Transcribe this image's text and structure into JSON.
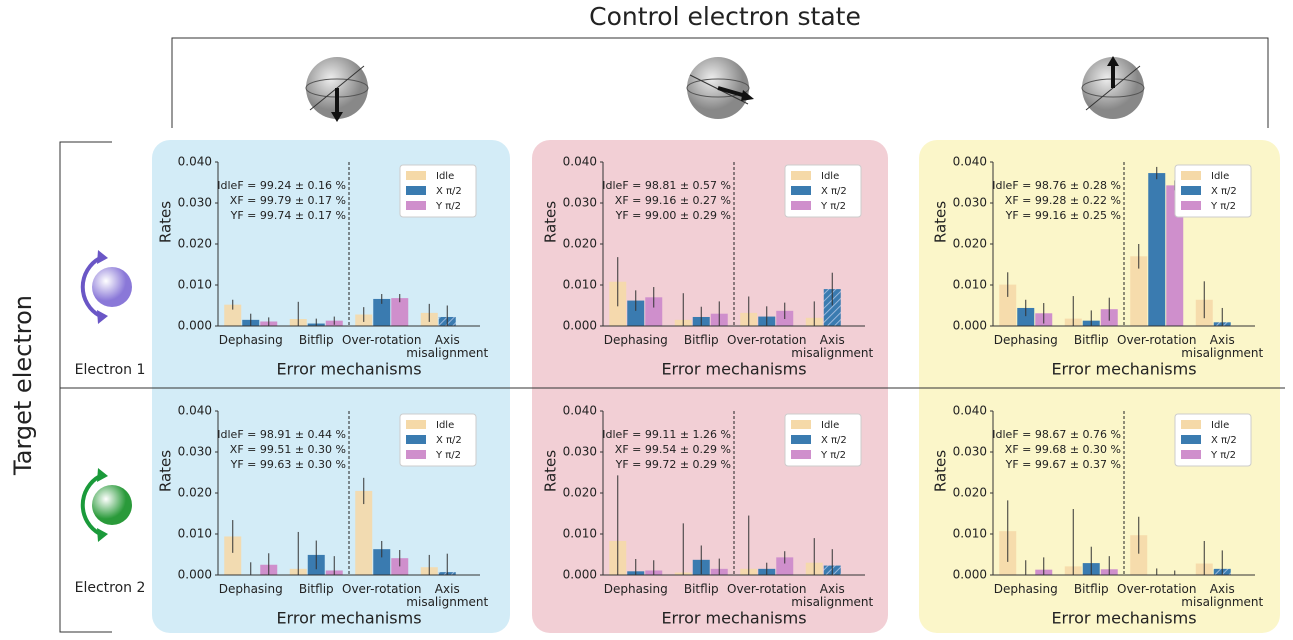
{
  "figure": {
    "title": "Control electron state",
    "row_title": "Target electron",
    "rows": [
      "Electron 1",
      "Electron 2"
    ]
  },
  "chart_data": [
    {
      "type": "bar",
      "xlabel": "Error mechanisms",
      "ylabel": "Rates",
      "categories": [
        "Dephasing",
        "Bitflip",
        "Over-rotation",
        "Axis\nmisalignment"
      ],
      "annotations": [
        "IdleF = 99.24 ± 0.16 %",
        "XF = 99.79 ± 0.17 %",
        "YF = 99.74 ± 0.17 %"
      ],
      "series": [
        {
          "name": "Idle",
          "color": "#f5d9a8",
          "values": [
            0.0052,
            0.0017,
            0.0028,
            0.0032
          ],
          "errors": [
            0.0012,
            0.0042,
            0.0018,
            0.0022
          ]
        },
        {
          "name": "X π/2",
          "color": "#3a7bb0",
          "values": [
            0.0015,
            0.0006,
            0.0066,
            0.0022
          ],
          "errors": [
            0.0015,
            0.0012,
            0.0012,
            0.0028
          ]
        },
        {
          "name": "Y π/2",
          "color": "#cf8fcc",
          "values": [
            0.0011,
            0.0013,
            0.0068,
            null
          ],
          "errors": [
            0.001,
            0.001,
            0.001,
            null
          ]
        }
      ],
      "ylim": [
        0,
        0.04
      ],
      "yticks": [
        {
          "value": 0,
          "label": "0.000"
        },
        {
          "value": 0.01,
          "label": "0.010"
        },
        {
          "value": 0.02,
          "label": "0.020"
        },
        {
          "value": 0.03,
          "label": "0.030"
        },
        {
          "value": 0.04,
          "label": "0.040"
        }
      ]
    },
    {
      "type": "bar",
      "xlabel": "Error mechanisms",
      "ylabel": "Rates",
      "categories": [
        "Dephasing",
        "Bitflip",
        "Over-rotation",
        "Axis\nmisalignment"
      ],
      "annotations": [
        "IdleF = 98.81 ± 0.57 %",
        "XF = 99.16 ± 0.27 %",
        "YF = 99.00 ± 0.29 %"
      ],
      "series": [
        {
          "name": "Idle",
          "color": "#f5d9a8",
          "values": [
            0.0108,
            0.0015,
            0.0032,
            0.002
          ],
          "errors": [
            0.006,
            0.0065,
            0.004,
            0.004
          ]
        },
        {
          "name": "X π/2",
          "color": "#3a7bb0",
          "values": [
            0.0062,
            0.0022,
            0.0023,
            0.009
          ],
          "errors": [
            0.0025,
            0.0025,
            0.0025,
            0.004
          ]
        },
        {
          "name": "Y π/2",
          "color": "#cf8fcc",
          "values": [
            0.007,
            0.003,
            0.0037,
            null
          ],
          "errors": [
            0.0025,
            0.003,
            0.002,
            null
          ]
        }
      ],
      "ylim": [
        0,
        0.04
      ],
      "yticks": [
        {
          "value": 0,
          "label": "0.000"
        },
        {
          "value": 0.01,
          "label": "0.010"
        },
        {
          "value": 0.02,
          "label": "0.020"
        },
        {
          "value": 0.03,
          "label": "0.030"
        },
        {
          "value": 0.04,
          "label": "0.040"
        }
      ]
    },
    {
      "type": "bar",
      "xlabel": "Error mechanisms",
      "ylabel": "Rates",
      "categories": [
        "Dephasing",
        "Bitflip",
        "Over-rotation",
        "Axis\nmisalignment"
      ],
      "annotations": [
        "IdleF = 98.76 ± 0.28 %",
        "XF = 99.28 ± 0.22 %",
        "YF = 99.16 ± 0.25 %"
      ],
      "series": [
        {
          "name": "Idle",
          "color": "#f5d9a8",
          "values": [
            0.0101,
            0.0018,
            0.017,
            0.0064
          ],
          "errors": [
            0.003,
            0.0055,
            0.003,
            0.0045
          ]
        },
        {
          "name": "X π/2",
          "color": "#3a7bb0",
          "values": [
            0.0044,
            0.0013,
            0.0373,
            0.0009
          ],
          "errors": [
            0.002,
            0.0025,
            0.0015,
            0.0035
          ]
        },
        {
          "name": "Y π/2",
          "color": "#cf8fcc",
          "values": [
            0.0031,
            0.0041,
            0.0343,
            null
          ],
          "errors": [
            0.0025,
            0.0028,
            0.0012,
            null
          ]
        }
      ],
      "ylim": [
        0,
        0.04
      ],
      "yticks": [
        {
          "value": 0,
          "label": "0.000"
        },
        {
          "value": 0.01,
          "label": "0.010"
        },
        {
          "value": 0.02,
          "label": "0.020"
        },
        {
          "value": 0.03,
          "label": "0.030"
        },
        {
          "value": 0.04,
          "label": "0.040"
        }
      ]
    },
    {
      "type": "bar",
      "xlabel": "Error mechanisms",
      "ylabel": "Rates",
      "categories": [
        "Dephasing",
        "Bitflip",
        "Over-rotation",
        "Axis\nmisalignment"
      ],
      "annotations": [
        "IdleF = 98.91 ± 0.44 %",
        "XF = 99.51 ± 0.30 %",
        "YF = 99.63 ± 0.30 %"
      ],
      "series": [
        {
          "name": "Idle",
          "color": "#f5d9a8",
          "values": [
            0.0094,
            0.0015,
            0.0205,
            0.0019
          ],
          "errors": [
            0.004,
            0.009,
            0.0032,
            0.003
          ]
        },
        {
          "name": "X π/2",
          "color": "#3a7bb0",
          "values": [
            0.0001,
            0.0049,
            0.0063,
            0.0007
          ],
          "errors": [
            0.003,
            0.0035,
            0.002,
            0.0045
          ]
        },
        {
          "name": "Y π/2",
          "color": "#cf8fcc",
          "values": [
            0.0025,
            0.0011,
            0.0041,
            null
          ],
          "errors": [
            0.0028,
            0.0035,
            0.002,
            null
          ]
        }
      ],
      "ylim": [
        0,
        0.04
      ],
      "yticks": [
        {
          "value": 0,
          "label": "0.000"
        },
        {
          "value": 0.01,
          "label": "0.010"
        },
        {
          "value": 0.02,
          "label": "0.020"
        },
        {
          "value": 0.03,
          "label": "0.030"
        },
        {
          "value": 0.04,
          "label": "0.040"
        }
      ]
    },
    {
      "type": "bar",
      "xlabel": "Error mechanisms",
      "ylabel": "Rates",
      "categories": [
        "Dephasing",
        "Bitflip",
        "Over-rotation",
        "Axis\nmisalignment"
      ],
      "annotations": [
        "IdleF = 99.11 ± 1.26 %",
        "XF = 99.54 ± 0.29 %",
        "YF = 99.72 ± 0.29 %"
      ],
      "series": [
        {
          "name": "Idle",
          "color": "#f5d9a8",
          "values": [
            0.0083,
            0.0006,
            0.0015,
            0.003
          ],
          "errors": [
            0.016,
            0.012,
            0.013,
            0.006
          ]
        },
        {
          "name": "X π/2",
          "color": "#3a7bb0",
          "values": [
            0.0009,
            0.0037,
            0.0015,
            0.0023
          ],
          "errors": [
            0.003,
            0.0035,
            0.0015,
            0.004
          ]
        },
        {
          "name": "Y π/2",
          "color": "#cf8fcc",
          "values": [
            0.0011,
            0.0015,
            0.0043,
            null
          ],
          "errors": [
            0.0025,
            0.0025,
            0.0015,
            null
          ]
        }
      ],
      "ylim": [
        0,
        0.04
      ],
      "yticks": [
        {
          "value": 0,
          "label": "0.000"
        },
        {
          "value": 0.01,
          "label": "0.010"
        },
        {
          "value": 0.02,
          "label": "0.020"
        },
        {
          "value": 0.03,
          "label": "0.030"
        },
        {
          "value": 0.04,
          "label": "0.040"
        }
      ]
    },
    {
      "type": "bar",
      "xlabel": "Error mechanisms",
      "ylabel": "Rates",
      "categories": [
        "Dephasing",
        "Bitflip",
        "Over-rotation",
        "Axis\nmisalignment"
      ],
      "annotations": [
        "IdleF = 98.67 ± 0.76 %",
        "XF = 99.68 ± 0.30 %",
        "YF = 99.67 ± 0.37 %"
      ],
      "series": [
        {
          "name": "Idle",
          "color": "#f5d9a8",
          "values": [
            0.0107,
            0.0021,
            0.0097,
            0.0028
          ],
          "errors": [
            0.0075,
            0.014,
            0.0045,
            0.0055
          ]
        },
        {
          "name": "X π/2",
          "color": "#3a7bb0",
          "values": [
            0.0001,
            0.0029,
            0.0001,
            0.0015
          ],
          "errors": [
            0.0035,
            0.004,
            0.0015,
            0.0045
          ]
        },
        {
          "name": "Y π/2",
          "color": "#cf8fcc",
          "values": [
            0.0013,
            0.0014,
            0.0001,
            null
          ],
          "errors": [
            0.003,
            0.0032,
            0.001,
            null
          ]
        }
      ],
      "ylim": [
        0,
        0.04
      ],
      "yticks": [
        {
          "value": 0,
          "label": "0.000"
        },
        {
          "value": 0.01,
          "label": "0.010"
        },
        {
          "value": 0.02,
          "label": "0.020"
        },
        {
          "value": 0.03,
          "label": "0.030"
        },
        {
          "value": 0.04,
          "label": "0.040"
        }
      ]
    }
  ]
}
